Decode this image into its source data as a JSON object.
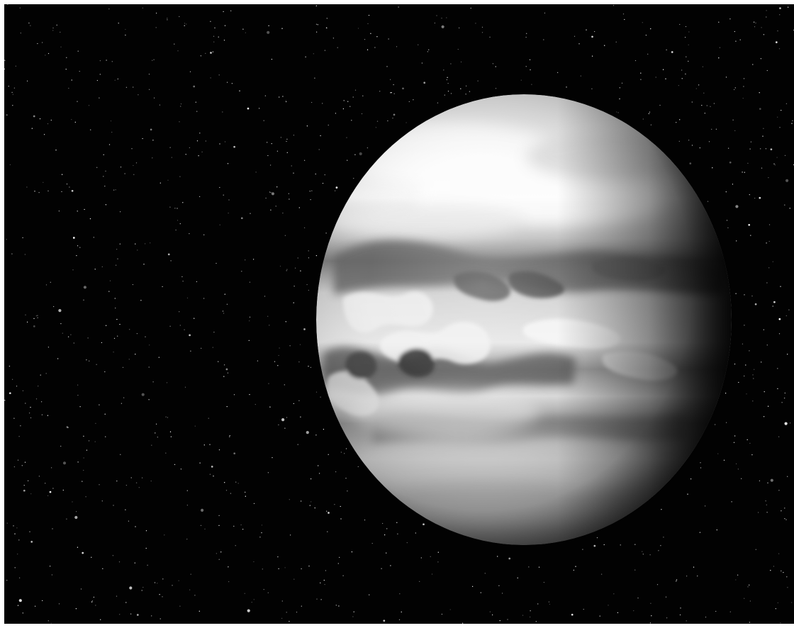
{
  "image": {
    "subject": "planet-with-cloud-bands",
    "background": "starfield",
    "colors": {
      "space": "#020202",
      "planet_light": "#f2f2f2",
      "planet_mid": "#c9c9c9",
      "planet_shadow": "#111111",
      "cloud_dark": "#4a4a4a",
      "star": "#ffffff"
    }
  }
}
